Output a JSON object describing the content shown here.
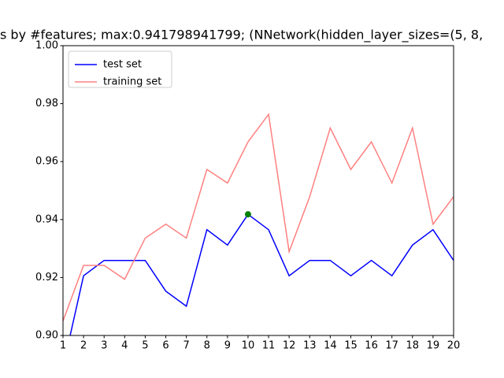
{
  "chart_data": {
    "type": "line",
    "title": "s by #features; max:0.941798941799; (NNetwork(hidden_layer_sizes=(5, 8, ",
    "x": [
      1,
      2,
      3,
      4,
      5,
      6,
      7,
      8,
      9,
      10,
      11,
      12,
      13,
      14,
      15,
      16,
      17,
      18,
      19,
      20
    ],
    "series": [
      {
        "name": "test set",
        "color": "#0000ff",
        "values": [
          0.889,
          0.9206,
          0.9259,
          0.9259,
          0.9259,
          0.9153,
          0.9101,
          0.9365,
          0.9312,
          0.9418,
          0.9365,
          0.9206,
          0.9259,
          0.9259,
          0.9206,
          0.9259,
          0.9206,
          0.9312,
          0.9365,
          0.9259
        ]
      },
      {
        "name": "training set",
        "color": "#ff8080",
        "values": [
          0.905,
          0.9242,
          0.9242,
          0.9194,
          0.9336,
          0.9384,
          0.9336,
          0.9573,
          0.9526,
          0.9668,
          0.9763,
          0.9289,
          0.9479,
          0.9716,
          0.9573,
          0.9668,
          0.9526,
          0.9716,
          0.9384,
          0.9479
        ]
      }
    ],
    "max_point": {
      "x": 10,
      "y": 0.941798941799,
      "color": "#008000"
    },
    "xlim": [
      1,
      20
    ],
    "xticks": [
      1,
      2,
      3,
      4,
      5,
      6,
      7,
      8,
      9,
      10,
      11,
      12,
      13,
      14,
      15,
      16,
      17,
      18,
      19,
      20
    ],
    "ylim": [
      0.9,
      1.0
    ],
    "yticks": [
      {
        "value": 0.9,
        "label": "0.90"
      },
      0.92,
      0.94,
      0.96,
      0.98,
      {
        "value": 1.0,
        "label": "1.00"
      }
    ],
    "legend": "upper left"
  }
}
